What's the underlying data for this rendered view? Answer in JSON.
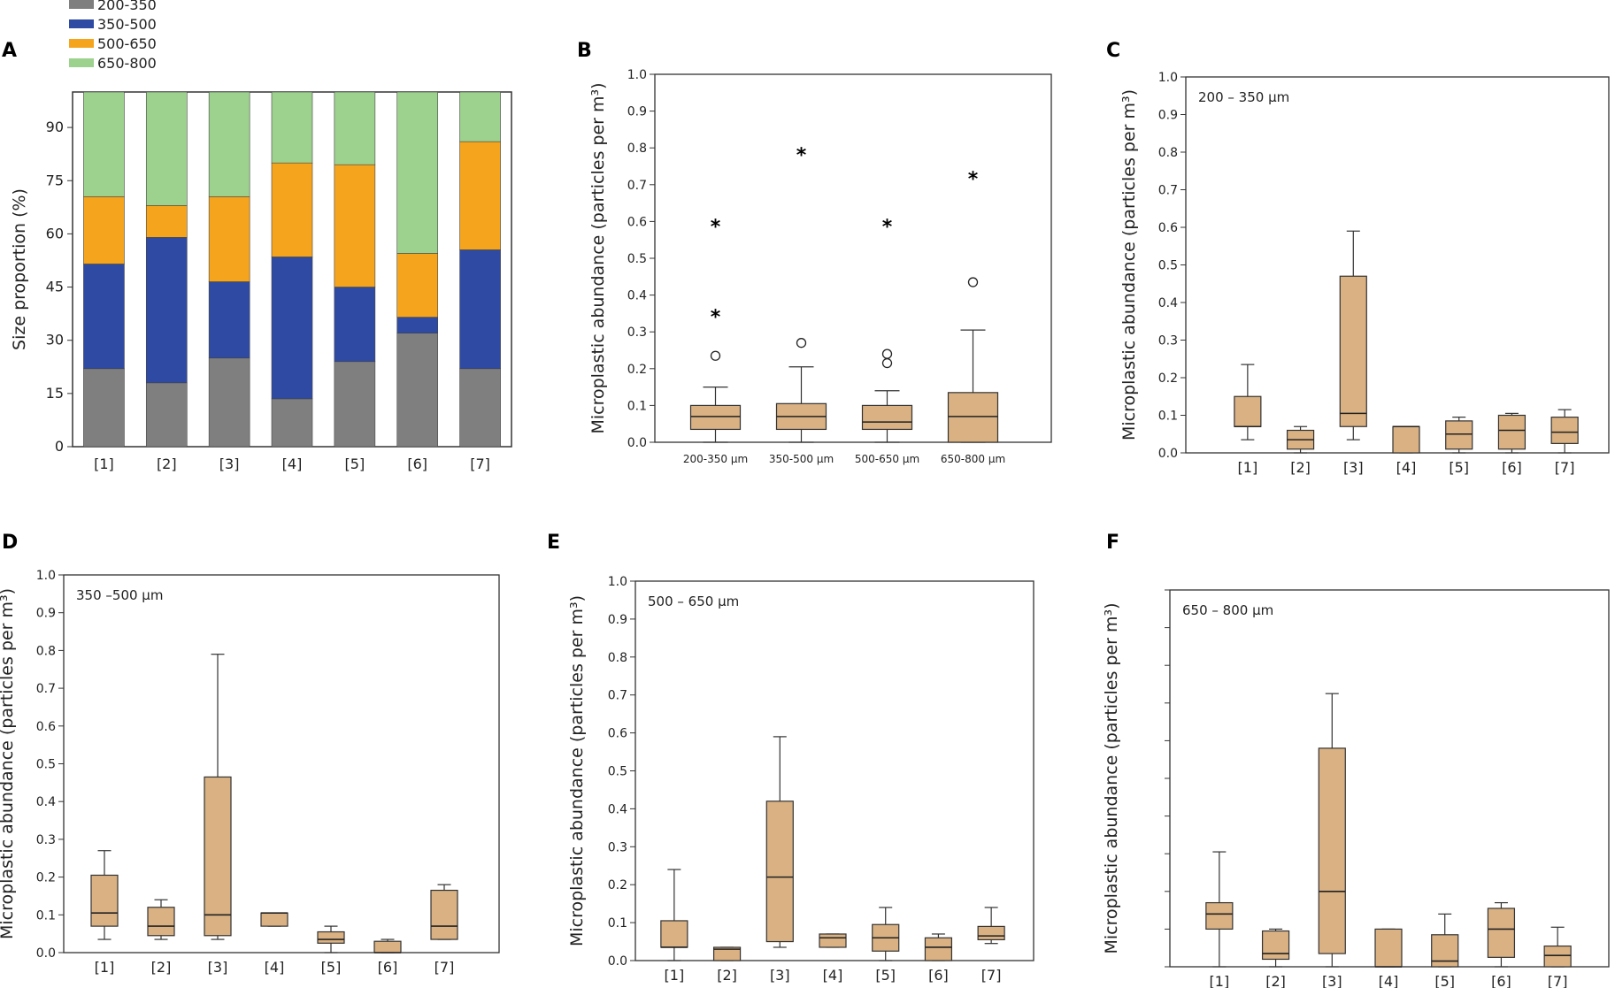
{
  "colors": {
    "s200_350": "#7f7f7f",
    "s350_500": "#2e4aa3",
    "s500_650": "#f5a41d",
    "s650_800": "#9dd18e",
    "box": "#d9b182",
    "frame": "#333333"
  },
  "panels": {
    "A": "A",
    "B": "B",
    "C": "C",
    "D": "D",
    "E": "E",
    "F": "F"
  },
  "chart_data": [
    {
      "panel": "A",
      "type": "bar",
      "stacked": true,
      "ylabel": "Size proportion (%)",
      "ylim": [
        0,
        100
      ],
      "yticks": [
        "0",
        "15",
        "30",
        "45",
        "60",
        "75",
        "90"
      ],
      "categories": [
        "[1]",
        "[2]",
        "[3]",
        "[4]",
        "[5]",
        "[6]",
        "[7]"
      ],
      "legend": [
        "200-350",
        "350-500",
        "500-650",
        "650-800"
      ],
      "series": [
        {
          "name": "200-350",
          "values": [
            22,
            18,
            25,
            13.5,
            24,
            32,
            22
          ]
        },
        {
          "name": "350-500",
          "values": [
            29.5,
            41,
            21.5,
            40,
            21,
            4.5,
            33.5
          ]
        },
        {
          "name": "500-650",
          "values": [
            19,
            9,
            24,
            26.5,
            34.5,
            18,
            30.5
          ]
        },
        {
          "name": "650-800",
          "values": [
            29.5,
            32,
            29.5,
            20,
            20.5,
            45.5,
            14
          ]
        }
      ]
    },
    {
      "panel": "B",
      "type": "boxplot",
      "ylabel": "Microplastic abundance (particles per m³)",
      "ylim": [
        0,
        1.0
      ],
      "yticks": [
        "0.0",
        "0.1",
        "0.2",
        "0.3",
        "0.4",
        "0.5",
        "0.6",
        "0.7",
        "0.8",
        "0.9",
        "1.0"
      ],
      "categories": [
        "200-350 µm",
        "350-500 µm",
        "500-650 µm",
        "650-800 µm"
      ],
      "boxes": [
        {
          "whislo": 0.0,
          "q1": 0.035,
          "med": 0.07,
          "q3": 0.1,
          "whishi": 0.15,
          "outliers": [
            0.235
          ],
          "extremes": [
            0.345,
            0.59
          ]
        },
        {
          "whislo": 0.0,
          "q1": 0.035,
          "med": 0.07,
          "q3": 0.105,
          "whishi": 0.205,
          "outliers": [
            0.27
          ],
          "extremes": [
            0.785
          ]
        },
        {
          "whislo": 0.0,
          "q1": 0.035,
          "med": 0.055,
          "q3": 0.1,
          "whishi": 0.14,
          "outliers": [
            0.215,
            0.24
          ],
          "extremes": [
            0.59
          ]
        },
        {
          "whislo": 0.0,
          "q1": 0.0,
          "med": 0.07,
          "q3": 0.135,
          "whishi": 0.305,
          "outliers": [
            0.435
          ],
          "extremes": [
            0.72
          ]
        }
      ]
    },
    {
      "panel": "C",
      "type": "boxplot",
      "annotation": "200 – 350 µm",
      "ylabel": "Microplastic abundance (particles per m³)",
      "ylim": [
        0,
        1.0
      ],
      "yticks": [
        "0.0",
        "0.1",
        "0.2",
        "0.3",
        "0.4",
        "0.5",
        "0.6",
        "0.7",
        "0.8",
        "0.9",
        "1.0"
      ],
      "categories": [
        "[1]",
        "[2]",
        "[3]",
        "[4]",
        "[5]",
        "[6]",
        "[7]"
      ],
      "boxes": [
        {
          "whislo": 0.035,
          "q1": 0.07,
          "med": 0.07,
          "q3": 0.15,
          "whishi": 0.235
        },
        {
          "whislo": 0.0,
          "q1": 0.01,
          "med": 0.035,
          "q3": 0.06,
          "whishi": 0.07
        },
        {
          "whislo": 0.035,
          "q1": 0.07,
          "med": 0.105,
          "q3": 0.47,
          "whishi": 0.59
        },
        {
          "whislo": 0.0,
          "q1": 0.0,
          "med": 0.07,
          "q3": 0.07,
          "whishi": 0.07
        },
        {
          "whislo": 0.0,
          "q1": 0.01,
          "med": 0.05,
          "q3": 0.085,
          "whishi": 0.095
        },
        {
          "whislo": 0.0,
          "q1": 0.01,
          "med": 0.06,
          "q3": 0.1,
          "whishi": 0.105
        },
        {
          "whislo": 0.0,
          "q1": 0.025,
          "med": 0.055,
          "q3": 0.095,
          "whishi": 0.115
        }
      ]
    },
    {
      "panel": "D",
      "type": "boxplot",
      "annotation": "350 –500 µm",
      "ylabel": "Microplastic abundance (particles per m³)",
      "ylim": [
        0,
        1.0
      ],
      "yticks": [
        "0.0",
        "0.1",
        "0.2",
        "0.3",
        "0.4",
        "0.5",
        "0.6",
        "0.7",
        "0.8",
        "0.9",
        "1.0"
      ],
      "categories": [
        "[1]",
        "[2]",
        "[3]",
        "[4]",
        "[5]",
        "[6]",
        "[7]"
      ],
      "boxes": [
        {
          "whislo": 0.035,
          "q1": 0.07,
          "med": 0.105,
          "q3": 0.205,
          "whishi": 0.27
        },
        {
          "whislo": 0.035,
          "q1": 0.045,
          "med": 0.07,
          "q3": 0.12,
          "whishi": 0.14
        },
        {
          "whislo": 0.035,
          "q1": 0.045,
          "med": 0.1,
          "q3": 0.465,
          "whishi": 0.79
        },
        {
          "whislo": 0.07,
          "q1": 0.07,
          "med": 0.105,
          "q3": 0.105,
          "whishi": 0.105
        },
        {
          "whislo": 0.0,
          "q1": 0.025,
          "med": 0.035,
          "q3": 0.055,
          "whishi": 0.07
        },
        {
          "whislo": 0.0,
          "q1": 0.0,
          "med": 0.0,
          "q3": 0.03,
          "whishi": 0.035
        },
        {
          "whislo": 0.035,
          "q1": 0.035,
          "med": 0.07,
          "q3": 0.165,
          "whishi": 0.18
        }
      ]
    },
    {
      "panel": "E",
      "type": "boxplot",
      "annotation": "500 – 650 µm",
      "ylabel": "Microplastic abundance (particles per m³)",
      "ylim": [
        0,
        1.0
      ],
      "yticks": [
        "0.0",
        "0.1",
        "0.2",
        "0.3",
        "0.4",
        "0.5",
        "0.6",
        "0.7",
        "0.8",
        "0.9",
        "1.0"
      ],
      "categories": [
        "[1]",
        "[2]",
        "[3]",
        "[4]",
        "[5]",
        "[6]",
        "[7]"
      ],
      "boxes": [
        {
          "whislo": 0.0,
          "q1": 0.035,
          "med": 0.035,
          "q3": 0.105,
          "whishi": 0.24
        },
        {
          "whislo": 0.0,
          "q1": 0.0,
          "med": 0.03,
          "q3": 0.035,
          "whishi": 0.035
        },
        {
          "whislo": 0.035,
          "q1": 0.05,
          "med": 0.22,
          "q3": 0.42,
          "whishi": 0.59
        },
        {
          "whislo": 0.035,
          "q1": 0.035,
          "med": 0.06,
          "q3": 0.07,
          "whishi": 0.07
        },
        {
          "whislo": 0.0,
          "q1": 0.025,
          "med": 0.06,
          "q3": 0.095,
          "whishi": 0.14
        },
        {
          "whislo": 0.0,
          "q1": 0.0,
          "med": 0.035,
          "q3": 0.06,
          "whishi": 0.07
        },
        {
          "whislo": 0.045,
          "q1": 0.055,
          "med": 0.065,
          "q3": 0.09,
          "whishi": 0.14
        }
      ]
    },
    {
      "panel": "F",
      "type": "boxplot",
      "annotation": "650 – 800 µm",
      "ylabel": "Microplastic abundance (particles per m³)",
      "ylim": [
        0,
        1.0
      ],
      "yticks": [
        "",
        "",
        "",
        "",
        "",
        "",
        "",
        "",
        "",
        "",
        ""
      ],
      "categories": [
        "[1]",
        "[2]",
        "[3]",
        "[4]",
        "[5]",
        "[6]",
        "[7]"
      ],
      "boxes": [
        {
          "whislo": 0.0,
          "q1": 0.1,
          "med": 0.14,
          "q3": 0.17,
          "whishi": 0.305
        },
        {
          "whislo": 0.0,
          "q1": 0.02,
          "med": 0.035,
          "q3": 0.095,
          "whishi": 0.1
        },
        {
          "whislo": 0.0,
          "q1": 0.035,
          "med": 0.2,
          "q3": 0.58,
          "whishi": 0.725
        },
        {
          "whislo": 0.0,
          "q1": 0.0,
          "med": 0.0,
          "q3": 0.1,
          "whishi": 0.1
        },
        {
          "whislo": 0.0,
          "q1": 0.0,
          "med": 0.015,
          "q3": 0.085,
          "whishi": 0.14
        },
        {
          "whislo": 0.0,
          "q1": 0.025,
          "med": 0.1,
          "q3": 0.155,
          "whishi": 0.17
        },
        {
          "whislo": 0.0,
          "q1": 0.0,
          "med": 0.03,
          "q3": 0.055,
          "whishi": 0.105
        }
      ]
    }
  ]
}
